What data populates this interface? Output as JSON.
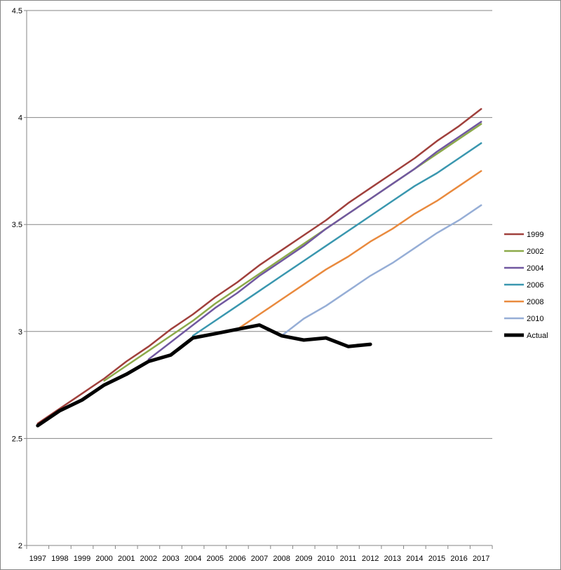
{
  "chart_data": {
    "type": "line",
    "title": "",
    "xlabel": "",
    "ylabel": "",
    "x": [
      "1997",
      "1998",
      "1999",
      "2000",
      "2001",
      "2002",
      "2003",
      "2004",
      "2005",
      "2006",
      "2007",
      "2008",
      "2009",
      "2010",
      "2011",
      "2012",
      "2013",
      "2014",
      "2015",
      "2016",
      "2017"
    ],
    "ylim": [
      2,
      4.5
    ],
    "yticks": [
      "2",
      "2.5",
      "3",
      "3.5",
      "4",
      "4.5"
    ],
    "grid": true,
    "legend": "right",
    "series": [
      {
        "name": "1999",
        "color": "#a0403c",
        "values": [
          2.57,
          2.64,
          2.71,
          2.78,
          2.86,
          2.93,
          3.01,
          3.08,
          3.16,
          3.23,
          3.31,
          3.38,
          3.45,
          3.52,
          3.6,
          3.67,
          3.74,
          3.81,
          3.89,
          3.96,
          4.04
        ]
      },
      {
        "name": "2002",
        "color": "#8caa4a",
        "values": [
          null,
          null,
          null,
          2.77,
          2.84,
          2.91,
          2.98,
          3.05,
          3.13,
          3.2,
          3.27,
          3.34,
          3.41,
          3.48,
          3.55,
          3.62,
          3.69,
          3.76,
          3.83,
          3.9,
          3.97
        ]
      },
      {
        "name": "2004",
        "color": "#7158a0",
        "values": [
          null,
          null,
          null,
          null,
          null,
          2.87,
          2.95,
          3.03,
          3.11,
          3.18,
          3.26,
          3.33,
          3.4,
          3.48,
          3.55,
          3.62,
          3.69,
          3.76,
          3.84,
          3.91,
          3.98
        ]
      },
      {
        "name": "2006",
        "color": "#3a97af",
        "values": [
          null,
          null,
          null,
          null,
          null,
          null,
          null,
          2.98,
          3.05,
          3.12,
          3.19,
          3.26,
          3.33,
          3.4,
          3.47,
          3.54,
          3.61,
          3.68,
          3.74,
          3.81,
          3.88
        ]
      },
      {
        "name": "2008",
        "color": "#e98a3e",
        "values": [
          null,
          null,
          null,
          null,
          null,
          null,
          null,
          null,
          null,
          3.01,
          3.08,
          3.15,
          3.22,
          3.29,
          3.35,
          3.42,
          3.48,
          3.55,
          3.61,
          3.68,
          3.75
        ]
      },
      {
        "name": "2010",
        "color": "#96aed6",
        "values": [
          null,
          null,
          null,
          null,
          null,
          null,
          null,
          null,
          null,
          null,
          null,
          2.98,
          3.06,
          3.12,
          3.19,
          3.26,
          3.32,
          3.39,
          3.46,
          3.52,
          3.59
        ]
      },
      {
        "name": "Actual",
        "color": "#000000",
        "values": [
          2.56,
          2.63,
          2.68,
          2.75,
          2.8,
          2.86,
          2.89,
          2.97,
          2.99,
          3.01,
          3.03,
          2.98,
          2.96,
          2.97,
          2.93,
          2.94,
          null,
          null,
          null,
          null,
          null
        ]
      }
    ]
  }
}
